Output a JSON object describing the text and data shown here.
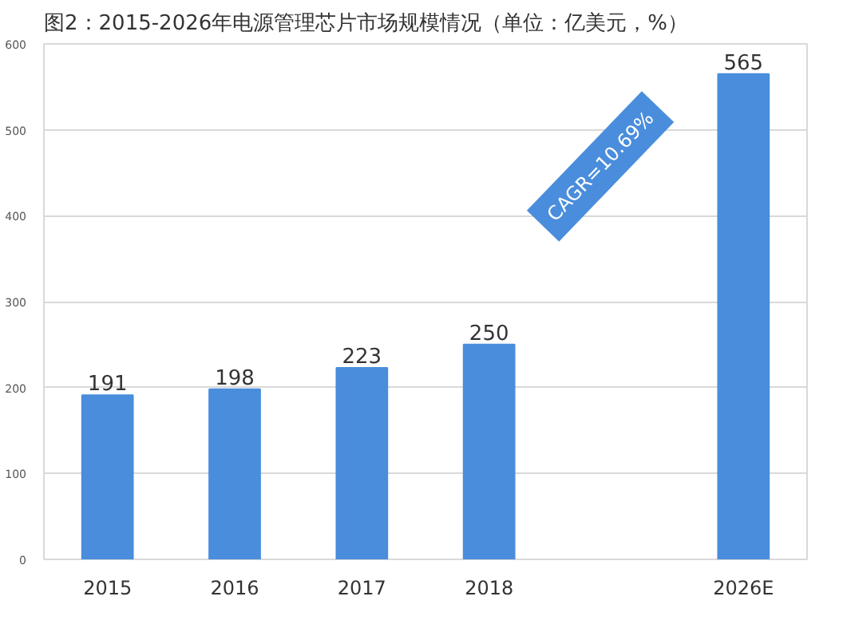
{
  "chart_data": {
    "type": "bar",
    "title": "图2：2015-2026年电源管理芯片市场规模情况（单位：亿美元，%）",
    "categories": [
      "2015",
      "2016",
      "2017",
      "2018",
      null,
      "2026E"
    ],
    "values": [
      191,
      198,
      223,
      250,
      null,
      565
    ],
    "color": "#4a8ddc",
    "ylim": [
      0,
      600
    ],
    "yticks": [
      0,
      100,
      200,
      300,
      400,
      500,
      600
    ],
    "grid": "y",
    "data_labels": true,
    "annotations": [
      "CAGR=10.69%"
    ]
  }
}
